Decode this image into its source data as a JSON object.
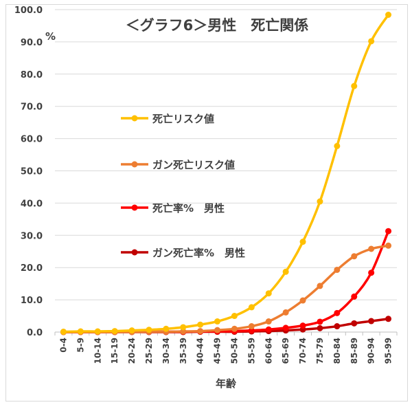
{
  "chart_data": {
    "type": "line",
    "title": "＜グラフ6＞男性　死亡関係",
    "y_unit": "%",
    "xlabel": "年齢",
    "ylim": [
      0,
      100
    ],
    "yticks": [
      "0.0",
      "10.0",
      "20.0",
      "30.0",
      "40.0",
      "50.0",
      "60.0",
      "70.0",
      "80.0",
      "90.0",
      "100.0"
    ],
    "categories": [
      "0-4",
      "5-9",
      "10-14",
      "15-19",
      "20-24",
      "25-29",
      "30-34",
      "35-39",
      "40-44",
      "45-49",
      "50-54",
      "55-59",
      "60-64",
      "65-69",
      "70-74",
      "75-79",
      "80-84",
      "85-89",
      "90-94",
      "95-99"
    ],
    "grid": "horizontal",
    "legend_position": "inside-left",
    "series": [
      {
        "name": "死亡リスク値",
        "color": "#FFC000",
        "values": [
          0.1,
          0.2,
          0.2,
          0.3,
          0.5,
          0.7,
          1.0,
          1.5,
          2.3,
          3.3,
          5.0,
          7.7,
          12.0,
          18.7,
          28.0,
          40.5,
          57.7,
          76.3,
          90.2,
          98.4
        ]
      },
      {
        "name": "ガン死亡リスク値",
        "color": "#ED7D31",
        "values": [
          0.0,
          0.0,
          0.0,
          0.0,
          0.0,
          0.1,
          0.1,
          0.2,
          0.3,
          0.6,
          1.0,
          1.8,
          3.3,
          6.1,
          9.8,
          14.3,
          19.3,
          23.5,
          25.8,
          26.8
        ]
      },
      {
        "name": "死亡率%　男性",
        "color": "#FF0000",
        "values": [
          0.0,
          0.0,
          0.0,
          0.0,
          0.1,
          0.1,
          0.1,
          0.1,
          0.2,
          0.2,
          0.3,
          0.5,
          0.8,
          1.3,
          2.0,
          3.2,
          5.9,
          11.0,
          18.4,
          31.3
        ]
      },
      {
        "name": "ガン死亡率%　男性",
        "color": "#C00000",
        "values": [
          0.0,
          0.0,
          0.0,
          0.0,
          0.0,
          0.0,
          0.0,
          0.0,
          0.1,
          0.1,
          0.1,
          0.2,
          0.3,
          0.5,
          0.8,
          1.2,
          1.8,
          2.7,
          3.4,
          4.1
        ]
      }
    ]
  }
}
